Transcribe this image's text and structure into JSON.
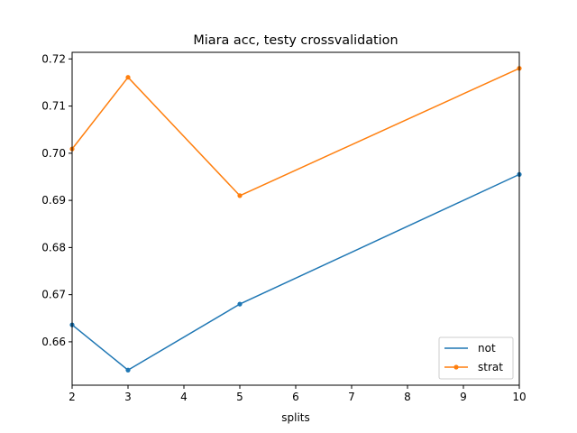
{
  "chart_data": {
    "type": "line",
    "title": "Miara acc, testy crossvalidation",
    "xlabel": "splits",
    "ylabel": "",
    "xlim": [
      2,
      10
    ],
    "ylim": [
      0.6508,
      0.7214
    ],
    "xticks": [
      2,
      3,
      4,
      5,
      6,
      7,
      8,
      9,
      10
    ],
    "yticks": [
      0.66,
      0.67,
      0.68,
      0.69,
      0.7,
      0.71,
      0.72
    ],
    "ytick_labels": [
      "0.66",
      "0.67",
      "0.68",
      "0.69",
      "0.70",
      "0.71",
      "0.72"
    ],
    "x": [
      2,
      3,
      5,
      10
    ],
    "series": [
      {
        "name": "not",
        "values": [
          0.6636,
          0.654,
          0.668,
          0.6955
        ],
        "color": "#1f77b4"
      },
      {
        "name": "strat",
        "values": [
          0.7009,
          0.7161,
          0.691,
          0.718
        ],
        "color": "#ff7f0e"
      }
    ],
    "grid": false,
    "legend_position": "lower right"
  }
}
